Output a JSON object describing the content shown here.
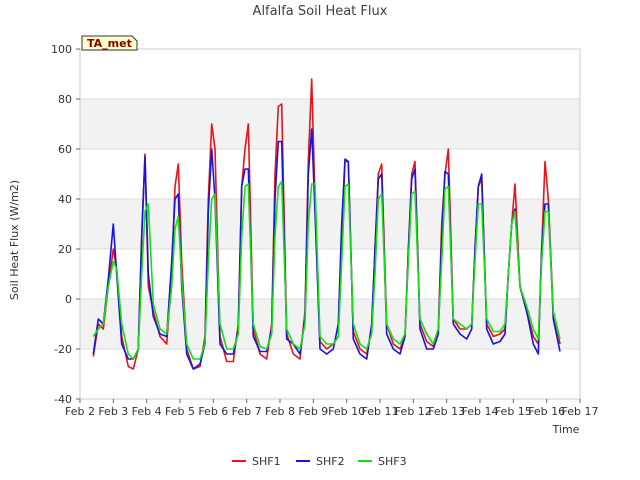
{
  "colors": {
    "SHF1": "#e8141a",
    "SHF2": "#1a14d8",
    "SHF3": "#14e014",
    "band": "#f2f2f2",
    "badge_fill": "#ffffc8",
    "badge_text": "#8b0000"
  },
  "chart_data": {
    "type": "line",
    "title": "Alfalfa Soil Heat Flux",
    "xlabel": "Time",
    "ylabel": "Soil Heat Flux (W/m2)",
    "badge": "TA_met",
    "xlim": [
      2,
      17
    ],
    "ylim": [
      -40,
      100
    ],
    "x_ticks": [
      {
        "v": 2,
        "label": "Feb 2"
      },
      {
        "v": 3,
        "label": "Feb 3"
      },
      {
        "v": 4,
        "label": "Feb 4"
      },
      {
        "v": 5,
        "label": "Feb 5"
      },
      {
        "v": 6,
        "label": "Feb 6"
      },
      {
        "v": 7,
        "label": "Feb 7"
      },
      {
        "v": 8,
        "label": "Feb 8"
      },
      {
        "v": 9,
        "label": "Feb 9"
      },
      {
        "v": 10,
        "label": "Feb 10"
      },
      {
        "v": 11,
        "label": "Feb 11"
      },
      {
        "v": 12,
        "label": "Feb 12"
      },
      {
        "v": 13,
        "label": "Feb 13"
      },
      {
        "v": 14,
        "label": "Feb 14"
      },
      {
        "v": 15,
        "label": "Feb 15"
      },
      {
        "v": 16,
        "label": "Feb 16"
      },
      {
        "v": 17,
        "label": "Feb 17"
      }
    ],
    "y_ticks": [
      {
        "v": -40,
        "label": "-40"
      },
      {
        "v": -20,
        "label": "-20"
      },
      {
        "v": 0,
        "label": "0"
      },
      {
        "v": 20,
        "label": "20"
      },
      {
        "v": 40,
        "label": "40"
      },
      {
        "v": 60,
        "label": "60"
      },
      {
        "v": 80,
        "label": "80"
      },
      {
        "v": 100,
        "label": "100"
      }
    ],
    "bands": [
      [
        -20,
        0
      ],
      [
        20,
        40
      ],
      [
        60,
        80
      ]
    ],
    "series": [
      {
        "name": "SHF1",
        "x": [
          2.4,
          2.55,
          2.7,
          2.85,
          3.0,
          3.1,
          3.25,
          3.45,
          3.6,
          3.75,
          3.85,
          3.95,
          4.05,
          4.2,
          4.4,
          4.6,
          4.75,
          4.85,
          4.95,
          5.05,
          5.2,
          5.4,
          5.6,
          5.75,
          5.85,
          5.95,
          6.05,
          6.2,
          6.4,
          6.6,
          6.75,
          6.85,
          6.95,
          7.05,
          7.2,
          7.4,
          7.6,
          7.75,
          7.85,
          7.95,
          8.05,
          8.2,
          8.4,
          8.6,
          8.75,
          8.85,
          8.95,
          9.05,
          9.2,
          9.4,
          9.6,
          9.75,
          9.85,
          9.95,
          10.05,
          10.2,
          10.4,
          10.6,
          10.75,
          10.85,
          10.95,
          11.05,
          11.2,
          11.4,
          11.6,
          11.75,
          11.85,
          11.95,
          12.05,
          12.2,
          12.4,
          12.6,
          12.75,
          12.85,
          12.95,
          13.05,
          13.2,
          13.4,
          13.6,
          13.75,
          13.85,
          13.95,
          14.05,
          14.2,
          14.4,
          14.6,
          14.75,
          14.85,
          14.95,
          15.05,
          15.2,
          15.4,
          15.6,
          15.75,
          15.85,
          15.95,
          16.05,
          16.2,
          16.4
        ],
        "y": [
          -23,
          -10,
          -12,
          5,
          20,
          12,
          -15,
          -27,
          -28,
          -20,
          25,
          58,
          5,
          -5,
          -15,
          -18,
          10,
          45,
          54,
          15,
          -20,
          -28,
          -27,
          -15,
          40,
          70,
          60,
          -15,
          -25,
          -25,
          -10,
          45,
          60,
          70,
          -12,
          -22,
          -24,
          -10,
          50,
          77,
          78,
          -14,
          -22,
          -24,
          -5,
          55,
          88,
          40,
          -17,
          -20,
          -18,
          -15,
          20,
          55,
          55,
          -13,
          -20,
          -22,
          -12,
          20,
          50,
          54,
          -10,
          -18,
          -20,
          -15,
          20,
          50,
          55,
          -10,
          -17,
          -19,
          -12,
          30,
          50,
          60,
          -8,
          -12,
          -12,
          -10,
          20,
          45,
          48,
          -10,
          -15,
          -14,
          -12,
          10,
          30,
          46,
          5,
          -5,
          -15,
          -18,
          20,
          55,
          40,
          -5,
          -18
        ]
      },
      {
        "name": "SHF2",
        "x": [
          2.4,
          2.55,
          2.7,
          2.85,
          3.0,
          3.1,
          3.25,
          3.45,
          3.6,
          3.75,
          3.85,
          3.95,
          4.05,
          4.2,
          4.4,
          4.6,
          4.75,
          4.85,
          4.95,
          5.05,
          5.2,
          5.4,
          5.6,
          5.75,
          5.85,
          5.95,
          6.05,
          6.2,
          6.4,
          6.6,
          6.75,
          6.85,
          6.95,
          7.05,
          7.2,
          7.4,
          7.6,
          7.75,
          7.85,
          7.95,
          8.05,
          8.2,
          8.4,
          8.6,
          8.75,
          8.85,
          8.95,
          9.05,
          9.2,
          9.4,
          9.6,
          9.75,
          9.85,
          9.95,
          10.05,
          10.2,
          10.4,
          10.6,
          10.75,
          10.85,
          10.95,
          11.05,
          11.2,
          11.4,
          11.6,
          11.75,
          11.85,
          11.95,
          12.05,
          12.2,
          12.4,
          12.6,
          12.75,
          12.85,
          12.95,
          13.05,
          13.2,
          13.4,
          13.6,
          13.75,
          13.85,
          13.95,
          14.05,
          14.2,
          14.4,
          14.6,
          14.75,
          14.85,
          14.95,
          15.05,
          15.2,
          15.4,
          15.6,
          15.75,
          15.85,
          15.95,
          16.05,
          16.2,
          16.4
        ],
        "y": [
          -22,
          -8,
          -10,
          8,
          30,
          10,
          -18,
          -24,
          -24,
          -20,
          25,
          57,
          10,
          -7,
          -14,
          -15,
          15,
          40,
          42,
          5,
          -22,
          -28,
          -26,
          -18,
          35,
          60,
          40,
          -18,
          -22,
          -22,
          -12,
          45,
          52,
          52,
          -15,
          -21,
          -21,
          -12,
          40,
          63,
          63,
          -16,
          -18,
          -22,
          -8,
          50,
          68,
          35,
          -20,
          -22,
          -20,
          -10,
          30,
          56,
          55,
          -16,
          -22,
          -24,
          -10,
          20,
          48,
          50,
          -14,
          -20,
          -22,
          -15,
          18,
          48,
          52,
          -12,
          -20,
          -20,
          -14,
          25,
          51,
          50,
          -10,
          -14,
          -16,
          -12,
          20,
          45,
          50,
          -12,
          -18,
          -17,
          -14,
          10,
          30,
          36,
          5,
          -5,
          -18,
          -22,
          20,
          38,
          38,
          -8,
          -21
        ]
      },
      {
        "name": "SHF3",
        "x": [
          2.4,
          2.55,
          2.7,
          2.85,
          3.0,
          3.1,
          3.25,
          3.45,
          3.6,
          3.75,
          3.85,
          3.95,
          4.05,
          4.2,
          4.4,
          4.6,
          4.75,
          4.85,
          4.95,
          5.05,
          5.2,
          5.4,
          5.6,
          5.75,
          5.85,
          5.95,
          6.05,
          6.2,
          6.4,
          6.6,
          6.75,
          6.85,
          6.95,
          7.05,
          7.2,
          7.4,
          7.6,
          7.75,
          7.85,
          7.95,
          8.05,
          8.2,
          8.4,
          8.6,
          8.75,
          8.85,
          8.95,
          9.05,
          9.2,
          9.4,
          9.6,
          9.75,
          9.85,
          9.95,
          10.05,
          10.2,
          10.4,
          10.6,
          10.75,
          10.85,
          10.95,
          11.05,
          11.2,
          11.4,
          11.6,
          11.75,
          11.85,
          11.95,
          12.05,
          12.2,
          12.4,
          12.6,
          12.75,
          12.85,
          12.95,
          13.05,
          13.2,
          13.4,
          13.6,
          13.75,
          13.85,
          13.95,
          14.05,
          14.2,
          14.4,
          14.6,
          14.75,
          14.85,
          14.95,
          15.05,
          15.2,
          15.4,
          15.6,
          15.75,
          15.85,
          15.95,
          16.05,
          16.2,
          16.4
        ],
        "y": [
          -15,
          -12,
          -10,
          5,
          15,
          12,
          -10,
          -22,
          -24,
          -20,
          10,
          35,
          38,
          -2,
          -12,
          -14,
          5,
          28,
          33,
          8,
          -18,
          -24,
          -24,
          -18,
          15,
          40,
          42,
          -10,
          -20,
          -20,
          -14,
          25,
          45,
          46,
          -10,
          -19,
          -20,
          -14,
          25,
          45,
          47,
          -12,
          -18,
          -20,
          -10,
          30,
          46,
          46,
          -15,
          -18,
          -18,
          -15,
          15,
          45,
          46,
          -10,
          -18,
          -20,
          -14,
          10,
          40,
          42,
          -10,
          -16,
          -18,
          -14,
          15,
          42,
          43,
          -8,
          -14,
          -18,
          -12,
          15,
          44,
          45,
          -8,
          -10,
          -12,
          -10,
          15,
          38,
          38,
          -8,
          -13,
          -13,
          -10,
          10,
          30,
          35,
          5,
          -3,
          -12,
          -16,
          15,
          35,
          35,
          -5,
          -16
        ]
      }
    ]
  }
}
